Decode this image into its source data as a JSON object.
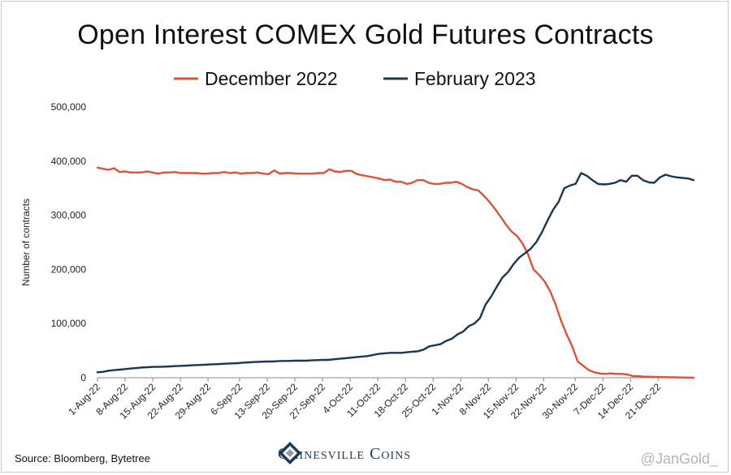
{
  "title": "Open Interest COMEX Gold Futures Contracts",
  "source": "Source: Bloomberg, Bytetree",
  "brand": "Gainesville Coins",
  "handle": "@JanGold_",
  "colors": {
    "december": "#d9533b",
    "february": "#1c3553",
    "axis": "#888888",
    "logo": "#1e3a56"
  },
  "chart_data": {
    "type": "line",
    "title": "Open Interest COMEX Gold Futures Contracts",
    "xlabel": "",
    "ylabel": "Number of contracts",
    "ylim": [
      0,
      500000
    ],
    "yticks": [
      0,
      100000,
      200000,
      300000,
      400000,
      500000
    ],
    "ytick_labels": [
      "0",
      "100,000",
      "200,000",
      "300,000",
      "400,000",
      "500,000"
    ],
    "xtick_labels": [
      "1-Aug-22",
      "8-Aug-22",
      "15-Aug-22",
      "22-Aug-22",
      "29-Aug-22",
      "6-Sep-22",
      "13-Sep-22",
      "20-Sep-22",
      "27-Sep-22",
      "4-Oct-22",
      "11-Oct-22",
      "18-Oct-22",
      "25-Oct-22",
      "1-Nov-22",
      "8-Nov-22",
      "15-Nov-22",
      "22-Nov-22",
      "30-Nov-22",
      "7-Dec-22",
      "14-Dec-22",
      "21-Dec-22"
    ],
    "legend_position": "top",
    "grid": false,
    "series": [
      {
        "name": "December 2022",
        "x_start": "2022-08-01",
        "values": [
          388000,
          386000,
          384000,
          387000,
          380000,
          381000,
          379000,
          379000,
          379000,
          381000,
          379000,
          377000,
          379000,
          379000,
          380000,
          378000,
          378000,
          378000,
          378000,
          377000,
          377000,
          378000,
          378000,
          380000,
          378000,
          379000,
          377000,
          378000,
          378000,
          379000,
          377000,
          376000,
          383000,
          377000,
          378000,
          378000,
          377000,
          377000,
          377000,
          377000,
          378000,
          378000,
          385000,
          381000,
          380000,
          382000,
          382000,
          376000,
          374000,
          372000,
          370000,
          368000,
          365000,
          366000,
          362000,
          362000,
          358000,
          360000,
          365000,
          365000,
          360000,
          358000,
          358000,
          360000,
          360000,
          362000,
          358000,
          352000,
          348000,
          346000,
          336000,
          325000,
          312000,
          298000,
          283000,
          270000,
          262000,
          248000,
          228000,
          200000,
          190000,
          178000,
          160000,
          135000,
          105000,
          80000,
          58000,
          30000,
          22000,
          14000,
          10000,
          8000,
          7000,
          8000,
          7000,
          7000,
          6000,
          3000,
          3000,
          2000,
          2000,
          1500,
          1200,
          1000,
          800,
          600,
          400,
          300,
          200
        ]
      },
      {
        "name": "February 2023",
        "x_start": "2022-08-01",
        "values": [
          10000,
          11000,
          13000,
          14000,
          15000,
          16000,
          17000,
          18000,
          19000,
          19500,
          20000,
          20000,
          20500,
          21000,
          21500,
          22000,
          22500,
          23000,
          23500,
          24000,
          24500,
          25000,
          25500,
          26000,
          26500,
          27000,
          28000,
          28500,
          29000,
          29500,
          30000,
          30000,
          30500,
          31000,
          31000,
          31500,
          31500,
          31500,
          32000,
          32500,
          33000,
          33000,
          34000,
          35000,
          36000,
          37000,
          38000,
          39000,
          40000,
          42000,
          44000,
          45000,
          46000,
          46000,
          46000,
          47000,
          48000,
          49000,
          52000,
          58000,
          60000,
          62000,
          68000,
          72000,
          80000,
          85000,
          95000,
          100000,
          110000,
          135000,
          150000,
          168000,
          185000,
          195000,
          210000,
          222000,
          230000,
          238000,
          250000,
          268000,
          290000,
          310000,
          325000,
          350000,
          355000,
          358000,
          378000,
          373000,
          365000,
          358000,
          357000,
          358000,
          360000,
          365000,
          362000,
          373000,
          373000,
          365000,
          361000,
          360000,
          370000,
          375000,
          372000,
          370000,
          369000,
          368000,
          365000
        ]
      }
    ]
  }
}
